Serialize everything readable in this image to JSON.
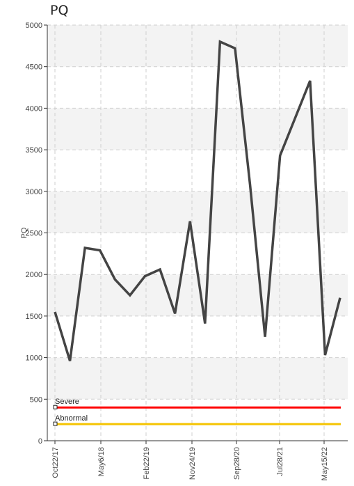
{
  "chart_data": {
    "type": "line",
    "title": "PQ",
    "ylabel": "PQ",
    "xlabel": "",
    "ylim": [
      0,
      5000
    ],
    "y_ticks": [
      "0",
      "500",
      "1000",
      "1500",
      "2000",
      "2500",
      "3000",
      "3500",
      "4000",
      "4500",
      "5000"
    ],
    "x_tick_labels": [
      "Oct22/17",
      "May6/18",
      "Feb22/19",
      "Nov24/19",
      "Sep28/20",
      "Jul28/21",
      "May15/22"
    ],
    "grid": true,
    "series": [
      {
        "color": "#444444",
        "values": [
          1550,
          960,
          2320,
          2290,
          1940,
          1750,
          1980,
          2060,
          1530,
          2640,
          1410,
          4800,
          4720,
          3080,
          1250,
          3430,
          3880,
          4330,
          1030,
          1720
        ]
      }
    ],
    "reference_lines": [
      {
        "label": "Severe",
        "value": 400,
        "color": "#ff0000"
      },
      {
        "label": "Abnormal",
        "value": 200,
        "color": "#f5c400"
      }
    ]
  }
}
